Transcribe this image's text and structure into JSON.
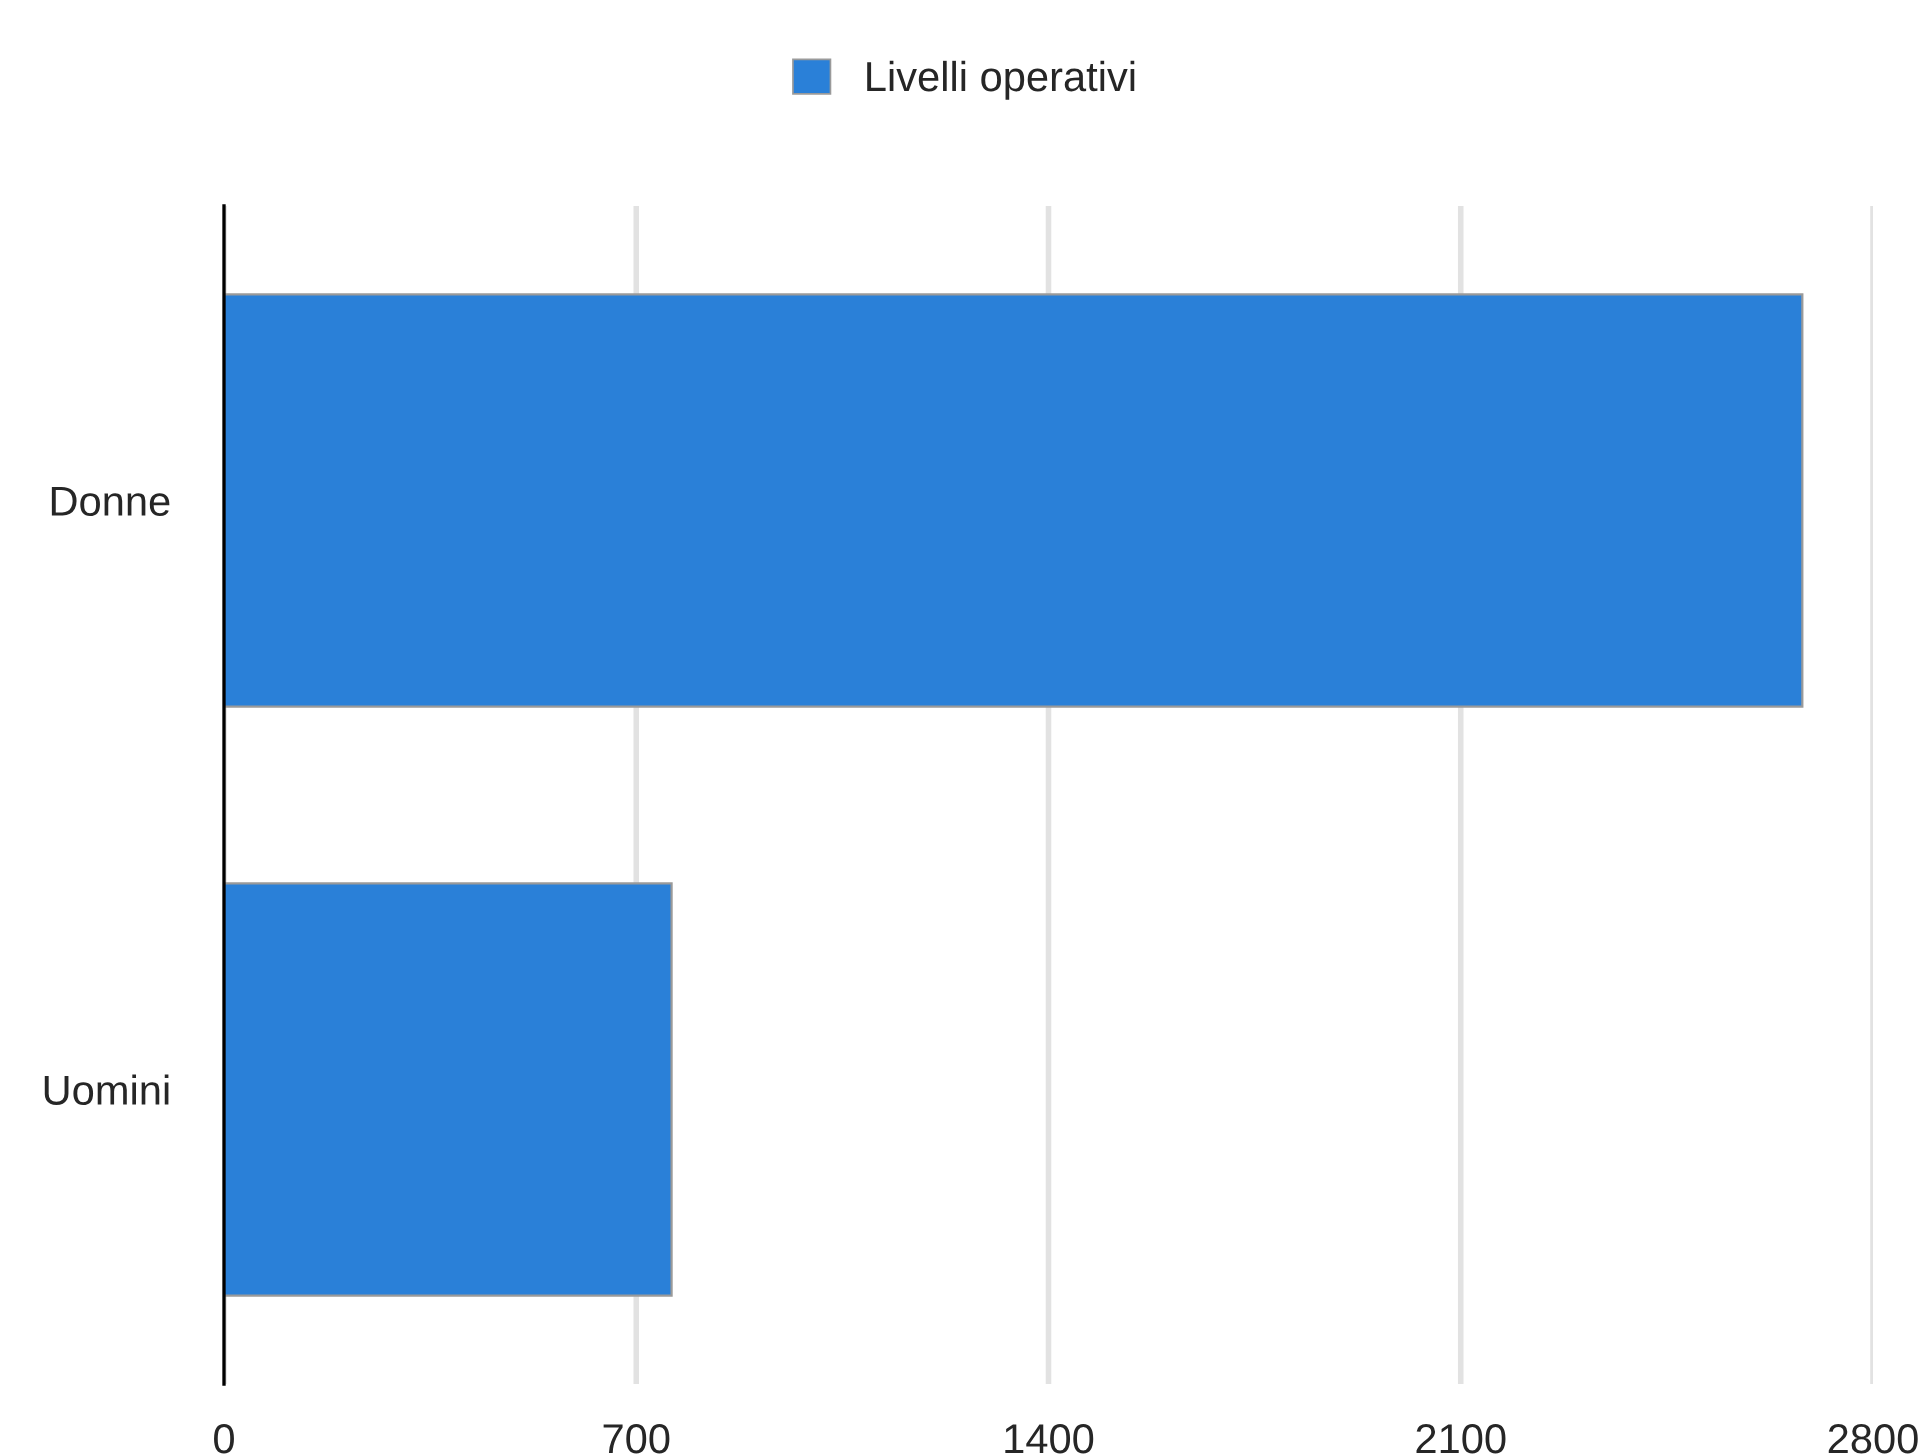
{
  "chart_data": {
    "type": "bar",
    "orientation": "horizontal",
    "categories": [
      "Donne",
      "Uomini"
    ],
    "series": [
      {
        "name": "Livelli operativi",
        "color": "#2a80d8",
        "values": [
          2680,
          760
        ]
      }
    ],
    "xlim": [
      0,
      2800
    ],
    "xticks": [
      0,
      700,
      1400,
      2100,
      2800
    ],
    "grid": "x",
    "legend": "top"
  }
}
